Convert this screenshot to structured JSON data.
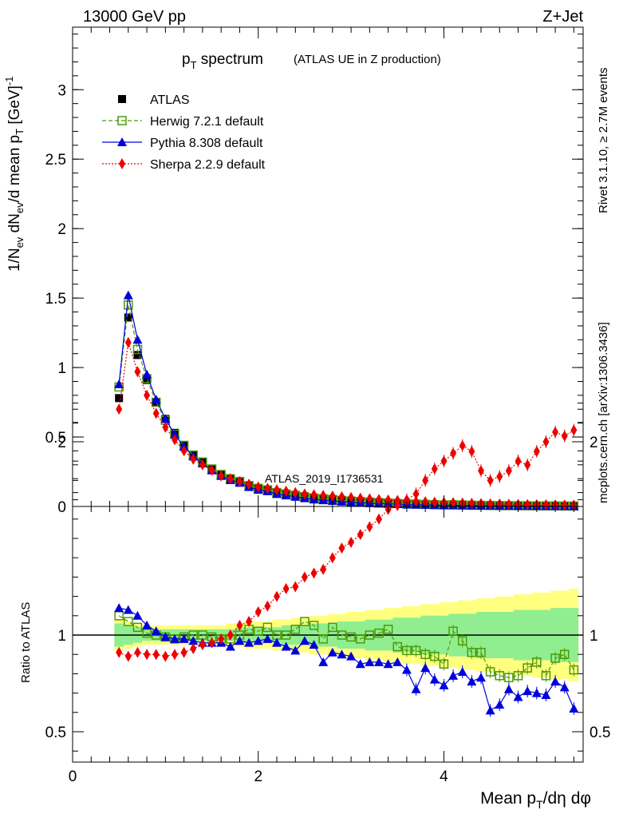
{
  "header": {
    "energy_label": "13000 GeV pp",
    "process_label": "Z+Jet"
  },
  "side_text": {
    "rivet": "Rivet 3.1.10, ≥ 2.7M events",
    "mcplots": "mcplots.cern.ch [arXiv:1306.3436]"
  },
  "watermark": "ATLAS_2019_I1736531",
  "colors": {
    "atlas": "#000000",
    "herwig": "#4e9a06",
    "pythia": "#0000dd",
    "sherpa": "#ee0000",
    "band_outer": "#ffff80",
    "band_inner": "#90ee90"
  },
  "chart_data": [
    {
      "type": "scatter",
      "title": "pT spectrum",
      "title_main": "p",
      "title_sub": "T",
      "title_rest": " spectrum",
      "subtitle": "(ATLAS UE in Z production)",
      "ylabel": "1/Nev dNev/d mean pT [GeV]-1",
      "ylim": [
        0,
        3.45
      ],
      "xlim": [
        0,
        5.5
      ],
      "yticks": [
        "0",
        "0.5",
        "1",
        "1.5",
        "2",
        "2.5",
        "3"
      ],
      "legend_position": "top-left",
      "x": [
        0.5,
        0.6,
        0.7,
        0.8,
        0.9,
        1.0,
        1.1,
        1.2,
        1.3,
        1.4,
        1.5,
        1.6,
        1.7,
        1.8,
        1.9,
        2.0,
        2.1,
        2.2,
        2.3,
        2.4,
        2.5,
        2.6,
        2.7,
        2.8,
        2.9,
        3.0,
        3.1,
        3.2,
        3.3,
        3.4,
        3.5,
        3.6,
        3.7,
        3.8,
        3.9,
        4.0,
        4.1,
        4.2,
        4.3,
        4.4,
        4.5,
        4.6,
        4.7,
        4.8,
        4.9,
        5.0,
        5.1,
        5.2,
        5.3,
        5.4
      ],
      "series": [
        {
          "name": "ATLAS",
          "values": [
            0.78,
            1.36,
            1.09,
            0.91,
            0.75,
            0.63,
            0.53,
            0.44,
            0.37,
            0.32,
            0.27,
            0.23,
            0.2,
            0.175,
            0.15,
            0.13,
            0.115,
            0.1,
            0.09,
            0.08,
            0.07,
            0.062,
            0.055,
            0.049,
            0.044,
            0.039,
            0.035,
            0.031,
            0.028,
            0.025,
            0.022,
            0.02,
            0.018,
            0.016,
            0.014,
            0.013,
            0.012,
            0.011,
            0.01,
            0.009,
            0.008,
            0.007,
            0.0065,
            0.006,
            0.0055,
            0.005,
            0.0045,
            0.004,
            0.0037,
            0.0034
          ]
        },
        {
          "name": "Herwig 7.2.1 default",
          "values": [
            0.86,
            1.45,
            1.13,
            0.92,
            0.75,
            0.62,
            0.52,
            0.44,
            0.37,
            0.32,
            0.27,
            0.23,
            0.2,
            0.18,
            0.15,
            0.13,
            0.12,
            0.1,
            0.09,
            0.08,
            0.07,
            0.06,
            0.055,
            0.05,
            0.044,
            0.039,
            0.035,
            0.031,
            0.028,
            0.025,
            0.022,
            0.019,
            0.017,
            0.015,
            0.013,
            0.011,
            0.012,
            0.011,
            0.009,
            0.008,
            0.007,
            0.006,
            0.006,
            0.005,
            0.005,
            0.004,
            0.004,
            0.004,
            0.003,
            0.003
          ]
        },
        {
          "name": "Pythia 8.308 default",
          "values": [
            0.88,
            1.52,
            1.2,
            0.95,
            0.77,
            0.63,
            0.52,
            0.43,
            0.36,
            0.31,
            0.26,
            0.22,
            0.19,
            0.17,
            0.14,
            0.12,
            0.11,
            0.09,
            0.08,
            0.07,
            0.06,
            0.05,
            0.045,
            0.04,
            0.035,
            0.031,
            0.027,
            0.024,
            0.021,
            0.019,
            0.017,
            0.014,
            0.013,
            0.012,
            0.01,
            0.009,
            0.008,
            0.007,
            0.006,
            0.006,
            0.005,
            0.005,
            0.004,
            0.004,
            0.004,
            0.004,
            0.003,
            0.003,
            0.003,
            0.002
          ]
        },
        {
          "name": "Sherpa 2.2.9 default",
          "values": [
            0.7,
            1.18,
            0.97,
            0.8,
            0.67,
            0.57,
            0.48,
            0.4,
            0.34,
            0.3,
            0.26,
            0.22,
            0.2,
            0.18,
            0.16,
            0.14,
            0.13,
            0.12,
            0.11,
            0.1,
            0.09,
            0.085,
            0.08,
            0.075,
            0.07,
            0.065,
            0.06,
            0.055,
            0.05,
            0.047,
            0.043,
            0.04,
            0.037,
            0.034,
            0.031,
            0.029,
            0.027,
            0.025,
            0.023,
            0.021,
            0.019,
            0.018,
            0.016,
            0.015,
            0.014,
            0.013,
            0.012,
            0.011,
            0.01,
            0.009
          ]
        }
      ]
    },
    {
      "type": "line",
      "title": "",
      "xlabel": "Mean pT/dη dφ",
      "xlabel_main": "Mean p",
      "xlabel_sub": "T",
      "xlabel_rest": "/dη dφ",
      "ylabel": "Ratio to ATLAS",
      "ylim": [
        0.3,
        2.3
      ],
      "xlim": [
        0,
        5.5
      ],
      "xticks": [
        "0",
        "2",
        "4"
      ],
      "yticks": [
        "0.5",
        "1",
        "2"
      ],
      "reference": 1.0,
      "x": [
        0.5,
        0.6,
        0.7,
        0.8,
        0.9,
        1.0,
        1.1,
        1.2,
        1.3,
        1.4,
        1.5,
        1.6,
        1.7,
        1.8,
        1.9,
        2.0,
        2.1,
        2.2,
        2.3,
        2.4,
        2.5,
        2.6,
        2.7,
        2.8,
        2.9,
        3.0,
        3.1,
        3.2,
        3.3,
        3.4,
        3.5,
        3.6,
        3.7,
        3.8,
        3.9,
        4.0,
        4.1,
        4.2,
        4.3,
        4.4,
        4.5,
        4.6,
        4.7,
        4.8,
        4.9,
        5.0,
        5.1,
        5.2,
        5.3,
        5.4
      ],
      "band_inner": [
        0.06,
        0.05,
        0.04,
        0.03,
        0.03,
        0.03,
        0.03,
        0.03,
        0.03,
        0.03,
        0.03,
        0.03,
        0.03,
        0.04,
        0.04,
        0.04,
        0.04,
        0.04,
        0.05,
        0.05,
        0.05,
        0.06,
        0.06,
        0.06,
        0.07,
        0.07,
        0.07,
        0.08,
        0.08,
        0.08,
        0.09,
        0.09,
        0.09,
        0.1,
        0.1,
        0.1,
        0.11,
        0.11,
        0.11,
        0.12,
        0.12,
        0.12,
        0.12,
        0.13,
        0.13,
        0.13,
        0.13,
        0.14,
        0.14,
        0.14
      ],
      "band_outer": [
        0.08,
        0.07,
        0.06,
        0.05,
        0.05,
        0.05,
        0.05,
        0.05,
        0.05,
        0.05,
        0.05,
        0.05,
        0.06,
        0.06,
        0.07,
        0.07,
        0.07,
        0.08,
        0.08,
        0.09,
        0.09,
        0.1,
        0.1,
        0.11,
        0.11,
        0.12,
        0.12,
        0.13,
        0.13,
        0.14,
        0.14,
        0.15,
        0.15,
        0.16,
        0.16,
        0.17,
        0.17,
        0.18,
        0.18,
        0.19,
        0.19,
        0.2,
        0.2,
        0.21,
        0.21,
        0.22,
        0.22,
        0.23,
        0.23,
        0.24
      ],
      "series": [
        {
          "name": "Herwig 7.2.1 default",
          "values": [
            1.1,
            1.07,
            1.04,
            1.01,
            1.0,
            0.99,
            0.98,
            0.99,
            1.0,
            1.0,
            0.99,
            0.98,
            0.98,
            1.0,
            1.03,
            1.02,
            1.04,
            1.0,
            1.0,
            1.03,
            1.07,
            1.05,
            0.98,
            1.04,
            1.0,
            0.99,
            0.98,
            1.0,
            1.01,
            1.03,
            0.94,
            0.92,
            0.92,
            0.9,
            0.89,
            0.85,
            1.02,
            0.97,
            0.91,
            0.91,
            0.81,
            0.79,
            0.78,
            0.79,
            0.83,
            0.86,
            0.79,
            0.88,
            0.9,
            0.82
          ]
        },
        {
          "name": "Pythia 8.308 default",
          "values": [
            1.14,
            1.13,
            1.1,
            1.05,
            1.02,
            0.99,
            0.98,
            0.98,
            0.97,
            0.96,
            0.96,
            0.96,
            0.94,
            0.97,
            0.96,
            0.97,
            0.98,
            0.96,
            0.94,
            0.92,
            0.97,
            0.95,
            0.86,
            0.91,
            0.9,
            0.89,
            0.85,
            0.86,
            0.86,
            0.85,
            0.86,
            0.82,
            0.72,
            0.83,
            0.77,
            0.74,
            0.79,
            0.81,
            0.76,
            0.78,
            0.61,
            0.64,
            0.72,
            0.68,
            0.71,
            0.7,
            0.69,
            0.76,
            0.73,
            0.62
          ]
        },
        {
          "name": "Sherpa 2.2.9 default",
          "values": [
            0.91,
            0.89,
            0.91,
            0.9,
            0.9,
            0.89,
            0.9,
            0.91,
            0.93,
            0.95,
            0.96,
            0.98,
            1.0,
            1.05,
            1.07,
            1.12,
            1.15,
            1.2,
            1.24,
            1.25,
            1.3,
            1.32,
            1.34,
            1.4,
            1.45,
            1.48,
            1.52,
            1.56,
            1.6,
            1.65,
            1.67,
            1.7,
            1.73,
            1.8,
            1.86,
            1.9,
            1.94,
            1.98,
            1.95,
            1.85,
            1.8,
            1.82,
            1.85,
            1.9,
            1.88,
            1.95,
            2.0,
            2.05,
            2.03,
            2.06
          ]
        }
      ]
    }
  ]
}
